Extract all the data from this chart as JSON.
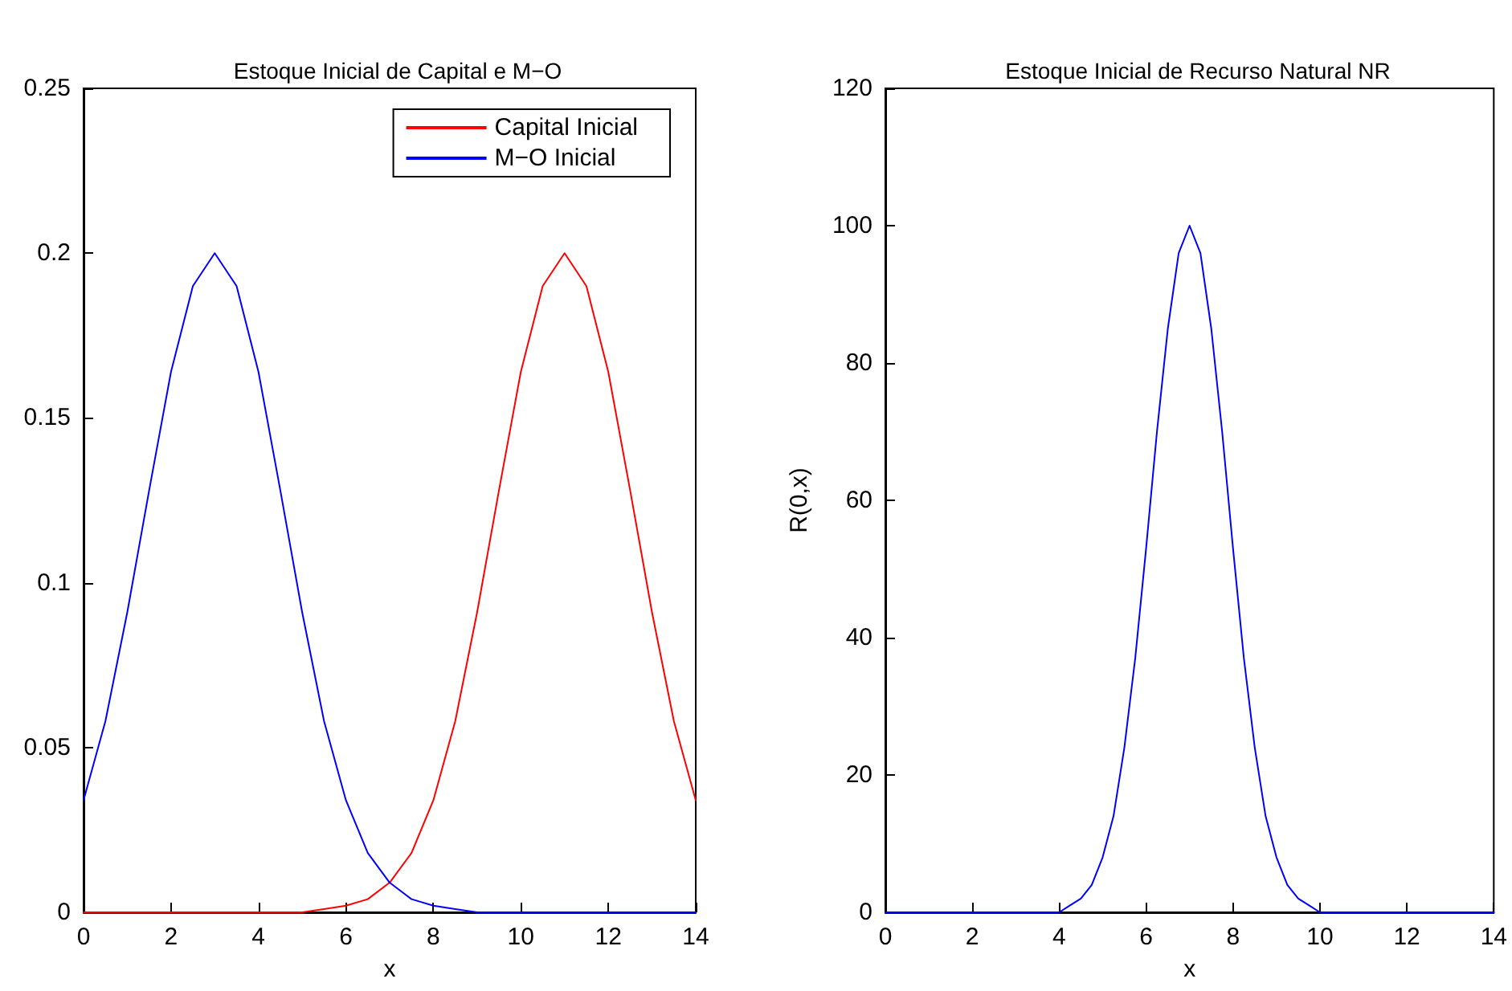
{
  "chart_data": [
    {
      "type": "line",
      "title": "Estoque Inicial de Capital e M−O",
      "xlabel": "x",
      "x": [
        0,
        0.5,
        1,
        1.5,
        2,
        2.5,
        3,
        3.5,
        4,
        4.5,
        5,
        5.5,
        6,
        6.5,
        7,
        7.5,
        8,
        8.5,
        9,
        9.5,
        10,
        10.5,
        11,
        11.5,
        12,
        12.5,
        13,
        13.5,
        14
      ],
      "series": [
        {
          "name": "Capital Inicial",
          "color": "#ff0000",
          "values": [
            0,
            0,
            0,
            0,
            0,
            0,
            0,
            0,
            0,
            0,
            0,
            0.001,
            0.002,
            0.004,
            0.009,
            0.018,
            0.034,
            0.058,
            0.091,
            0.128,
            0.164,
            0.19,
            0.2,
            0.19,
            0.164,
            0.128,
            0.091,
            0.058,
            0.034
          ]
        },
        {
          "name": "M−O Inicial",
          "color": "#0000ff",
          "values": [
            0.034,
            0.058,
            0.091,
            0.128,
            0.164,
            0.19,
            0.2,
            0.19,
            0.164,
            0.128,
            0.091,
            0.058,
            0.034,
            0.018,
            0.009,
            0.004,
            0.002,
            0.001,
            0,
            0,
            0,
            0,
            0,
            0,
            0,
            0,
            0,
            0,
            0
          ]
        }
      ],
      "xlim": [
        0,
        14
      ],
      "xticks": [
        0,
        2,
        4,
        6,
        8,
        10,
        12,
        14
      ],
      "ylim": [
        0,
        0.25
      ],
      "yticks": [
        0,
        0.05,
        0.1,
        0.15,
        0.2,
        0.25
      ],
      "legend": "top right",
      "grid": false,
      "marker": "none",
      "line_style": "solid"
    },
    {
      "type": "line",
      "title": "Estoque Inicial de Recurso Natural NR",
      "xlabel": "x",
      "ylabel": "R(0,x)",
      "x": [
        0,
        1,
        2,
        3,
        4,
        4.25,
        4.5,
        4.75,
        5,
        5.25,
        5.5,
        5.75,
        6,
        6.25,
        6.5,
        6.75,
        7,
        7.25,
        7.5,
        7.75,
        8,
        8.25,
        8.5,
        8.75,
        9,
        9.25,
        9.5,
        9.75,
        10,
        11,
        12,
        13,
        14
      ],
      "series": [
        {
          "color": "#0000ff",
          "values": [
            0,
            0,
            0,
            0,
            0,
            1,
            2,
            4,
            8,
            14,
            24,
            37,
            53,
            70,
            85,
            96,
            100,
            96,
            85,
            70,
            53,
            37,
            24,
            14,
            8,
            4,
            2,
            1,
            0,
            0,
            0,
            0,
            0
          ]
        }
      ],
      "xlim": [
        0,
        14
      ],
      "xticks": [
        0,
        2,
        4,
        6,
        8,
        10,
        12,
        14
      ],
      "ylim": [
        0,
        120
      ],
      "yticks": [
        0,
        20,
        40,
        60,
        80,
        100,
        120
      ],
      "legend": false,
      "grid": false,
      "marker": "none",
      "line_style": "solid"
    }
  ]
}
